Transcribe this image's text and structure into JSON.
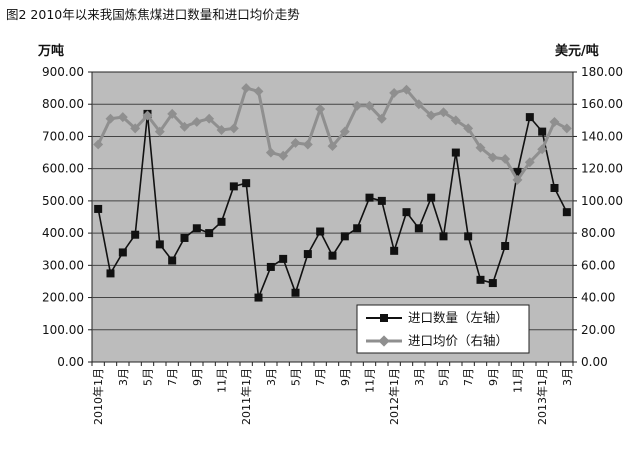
{
  "title": "图2 2010年以来我国炼焦煤进口数量和进口均价走势",
  "left_unit": "万吨",
  "right_unit": "美元/吨",
  "chart_data": {
    "type": "line",
    "x": [
      "2010年1月",
      "2010年2月",
      "2010年3月",
      "2010年4月",
      "2010年5月",
      "2010年6月",
      "2010年7月",
      "2010年8月",
      "2010年9月",
      "2010年10月",
      "2010年11月",
      "2010年12月",
      "2011年1月",
      "2011年2月",
      "2011年3月",
      "2011年4月",
      "2011年5月",
      "2011年6月",
      "2011年7月",
      "2011年8月",
      "2011年9月",
      "2011年10月",
      "2011年11月",
      "2011年12月",
      "2012年1月",
      "2012年2月",
      "2012年3月",
      "2012年4月",
      "2012年5月",
      "2012年6月",
      "2012年7月",
      "2012年8月",
      "2012年9月",
      "2012年10月",
      "2012年11月",
      "2012年12月",
      "2013年1月",
      "2013年2月",
      "2013年3月"
    ],
    "xtick_labels": [
      "2010年1月",
      "3月",
      "5月",
      "7月",
      "9月",
      "11月",
      "2011年1月",
      "3月",
      "5月",
      "7月",
      "9月",
      "11月",
      "2012年1月",
      "3月",
      "5月",
      "7月",
      "9月",
      "11月",
      "2013年1月",
      "3月"
    ],
    "series": [
      {
        "name": "进口数量（左轴）",
        "axis": "left",
        "marker": "square",
        "color": "#111111",
        "values": [
          475,
          275,
          340,
          395,
          770,
          365,
          315,
          385,
          415,
          400,
          435,
          545,
          555,
          200,
          295,
          320,
          215,
          335,
          405,
          330,
          390,
          415,
          510,
          500,
          345,
          465,
          415,
          510,
          390,
          650,
          390,
          255,
          245,
          360,
          590,
          760,
          715,
          540,
          465
        ]
      },
      {
        "name": "进口均价（右轴）",
        "axis": "right",
        "marker": "diamond",
        "color": "#8f8f8f",
        "values": [
          135,
          151,
          152,
          145,
          153,
          143,
          154,
          146,
          149,
          151,
          144,
          145,
          170,
          168,
          130,
          128,
          136,
          135,
          157,
          134,
          143,
          159,
          159,
          151,
          167,
          169,
          160,
          153,
          155,
          150,
          145,
          133,
          127,
          126,
          113,
          124,
          132,
          149,
          145
        ]
      }
    ],
    "ylim_left": [
      0,
      900
    ],
    "ylim_right": [
      0,
      180
    ],
    "yticks_left": [
      "900.00",
      "800.00",
      "700.00",
      "600.00",
      "500.00",
      "400.00",
      "300.00",
      "200.00",
      "100.00",
      "0.00"
    ],
    "yticks_right": [
      "180.00",
      "160.00",
      "140.00",
      "120.00",
      "100.00",
      "80.00",
      "60.00",
      "40.00",
      "20.00",
      "0.00"
    ],
    "grid": "horizontal",
    "plot_background": "#bcbcbc",
    "legend_position": "bottom-right"
  }
}
